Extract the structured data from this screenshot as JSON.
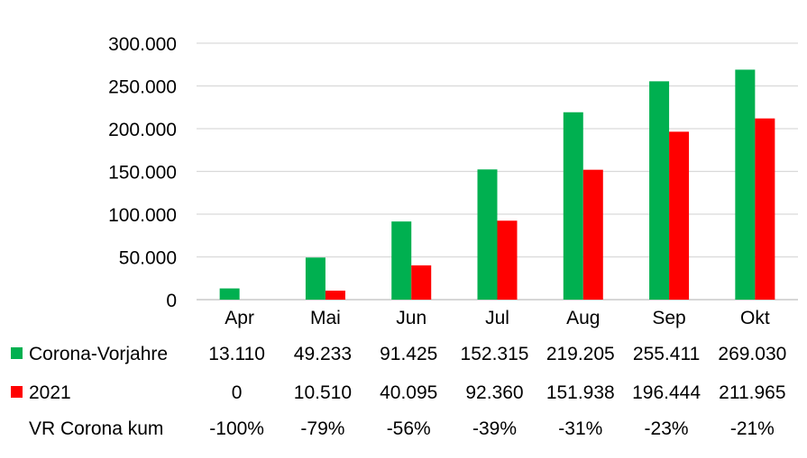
{
  "colors": {
    "series1": "#00B050",
    "series2": "#FF0000",
    "grid": "#D9D9D9",
    "axis": "#BFBFBF"
  },
  "chart_data": {
    "type": "bar",
    "title": "",
    "xlabel": "",
    "ylabel": "",
    "categories": [
      "Apr",
      "Mai",
      "Jun",
      "Jul",
      "Aug",
      "Sep",
      "Okt"
    ],
    "ylim": [
      0,
      300000
    ],
    "yticks": [
      0,
      50000,
      100000,
      150000,
      200000,
      250000,
      300000
    ],
    "ytick_labels": [
      "0",
      "50.000",
      "100.000",
      "150.000",
      "200.000",
      "250.000",
      "300.000"
    ],
    "grid": true,
    "legend": "table-below",
    "series": [
      {
        "name": "Corona-Vorjahre",
        "color": "#00B050",
        "values": [
          13110,
          49233,
          91425,
          152315,
          219205,
          255411,
          269030
        ],
        "labels": [
          "13.110",
          "49.233",
          "91.425",
          "152.315",
          "219.205",
          "255.411",
          "269.030"
        ]
      },
      {
        "name": "2021",
        "color": "#FF0000",
        "values": [
          0,
          10510,
          40095,
          92360,
          151938,
          196444,
          211965
        ],
        "labels": [
          "0",
          "10.510",
          "40.095",
          "92.360",
          "151.938",
          "196.444",
          "211.965"
        ]
      }
    ],
    "extra_row": {
      "name": "VR Corona kum",
      "values": [
        -1.0,
        -0.79,
        -0.56,
        -0.39,
        -0.31,
        -0.23,
        -0.21
      ],
      "labels": [
        "-100%",
        "-79%",
        "-56%",
        "-39%",
        "-31%",
        "-23%",
        "-21%"
      ]
    }
  }
}
